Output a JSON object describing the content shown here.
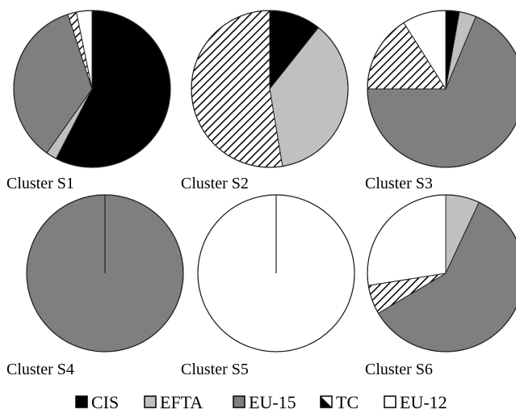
{
  "chart_data": {
    "type": "pie",
    "legend": {
      "placement": "bottom",
      "items": [
        {
          "name": "CIS",
          "fill": "black"
        },
        {
          "name": "EFTA",
          "fill": "lightgray"
        },
        {
          "name": "EU-15",
          "fill": "gray"
        },
        {
          "name": "TC",
          "fill": "hatch"
        },
        {
          "name": "EU-12",
          "fill": "white"
        }
      ]
    },
    "colors": {
      "CIS": "#000000",
      "EFTA": "#c0c0c0",
      "EU-15": "#7f7f7f",
      "TC": "hatch",
      "EU-12": "#ffffff"
    },
    "charts": [
      {
        "label": "Cluster S1",
        "slices": [
          {
            "name": "CIS",
            "value": 57.6
          },
          {
            "name": "EFTA",
            "value": 2.2
          },
          {
            "name": "EU-15",
            "value": 35.2
          },
          {
            "name": "TC",
            "value": 1.8
          },
          {
            "name": "EU-12",
            "value": 3.2
          }
        ]
      },
      {
        "label": "Cluster S2",
        "slices": [
          {
            "name": "CIS",
            "value": 10.7
          },
          {
            "name": "EFTA",
            "value": 36.7
          },
          {
            "name": "EU-15",
            "value": 0
          },
          {
            "name": "TC",
            "value": 52.6
          },
          {
            "name": "EU-12",
            "value": 0
          }
        ]
      },
      {
        "label": "Cluster S3",
        "slices": [
          {
            "name": "CIS",
            "value": 2.8
          },
          {
            "name": "EFTA",
            "value": 3.5
          },
          {
            "name": "EU-15",
            "value": 68.7
          },
          {
            "name": "TC",
            "value": 16.0
          },
          {
            "name": "EU-12",
            "value": 9.0
          }
        ]
      },
      {
        "label": "Cluster S4",
        "slices": [
          {
            "name": "CIS",
            "value": 0
          },
          {
            "name": "EFTA",
            "value": 0
          },
          {
            "name": "EU-15",
            "value": 100
          },
          {
            "name": "TC",
            "value": 0
          },
          {
            "name": "EU-12",
            "value": 0
          }
        ]
      },
      {
        "label": "Cluster S5",
        "slices": [
          {
            "name": "CIS",
            "value": 0
          },
          {
            "name": "EFTA",
            "value": 0
          },
          {
            "name": "EU-15",
            "value": 0
          },
          {
            "name": "TC",
            "value": 0
          },
          {
            "name": "EU-12",
            "value": 100
          }
        ]
      },
      {
        "label": "Cluster S6",
        "slices": [
          {
            "name": "CIS",
            "value": 0
          },
          {
            "name": "EFTA",
            "value": 7.0
          },
          {
            "name": "EU-15",
            "value": 59.5
          },
          {
            "name": "TC",
            "value": 6.0
          },
          {
            "name": "EU-12",
            "value": 27.5
          }
        ]
      }
    ]
  }
}
